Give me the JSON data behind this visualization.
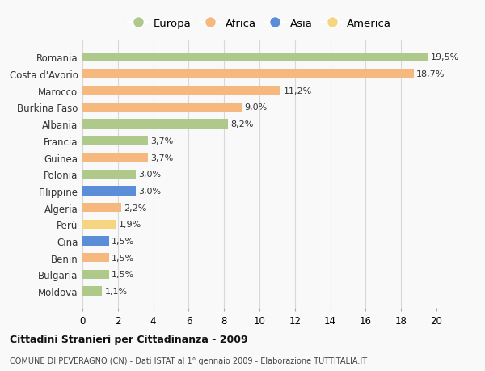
{
  "countries": [
    "Romania",
    "Costa d'Avorio",
    "Marocco",
    "Burkina Faso",
    "Albania",
    "Francia",
    "Guinea",
    "Polonia",
    "Filippine",
    "Algeria",
    "Perù",
    "Cina",
    "Benin",
    "Bulgaria",
    "Moldova"
  ],
  "values": [
    19.5,
    18.7,
    11.2,
    9.0,
    8.2,
    3.7,
    3.7,
    3.0,
    3.0,
    2.2,
    1.9,
    1.5,
    1.5,
    1.5,
    1.1
  ],
  "labels": [
    "19,5%",
    "18,7%",
    "11,2%",
    "9,0%",
    "8,2%",
    "3,7%",
    "3,7%",
    "3,0%",
    "3,0%",
    "2,2%",
    "1,9%",
    "1,5%",
    "1,5%",
    "1,5%",
    "1,1%"
  ],
  "continents": [
    "Europa",
    "Africa",
    "Africa",
    "Africa",
    "Europa",
    "Europa",
    "Africa",
    "Europa",
    "Asia",
    "Africa",
    "America",
    "Asia",
    "Africa",
    "Europa",
    "Europa"
  ],
  "continent_colors": {
    "Europa": "#aec98a",
    "Africa": "#f5b97f",
    "Asia": "#5b8dd9",
    "America": "#f5d57f"
  },
  "legend_order": [
    "Europa",
    "Africa",
    "Asia",
    "America"
  ],
  "title": "Cittadini Stranieri per Cittadinanza - 2009",
  "subtitle": "COMUNE DI PEVERAGNO (CN) - Dati ISTAT al 1° gennaio 2009 - Elaborazione TUTTITALIA.IT",
  "xlim": [
    0,
    20
  ],
  "xticks": [
    0,
    2,
    4,
    6,
    8,
    10,
    12,
    14,
    16,
    18,
    20
  ],
  "background_color": "#f9f9f9",
  "grid_color": "#d8d8d8"
}
